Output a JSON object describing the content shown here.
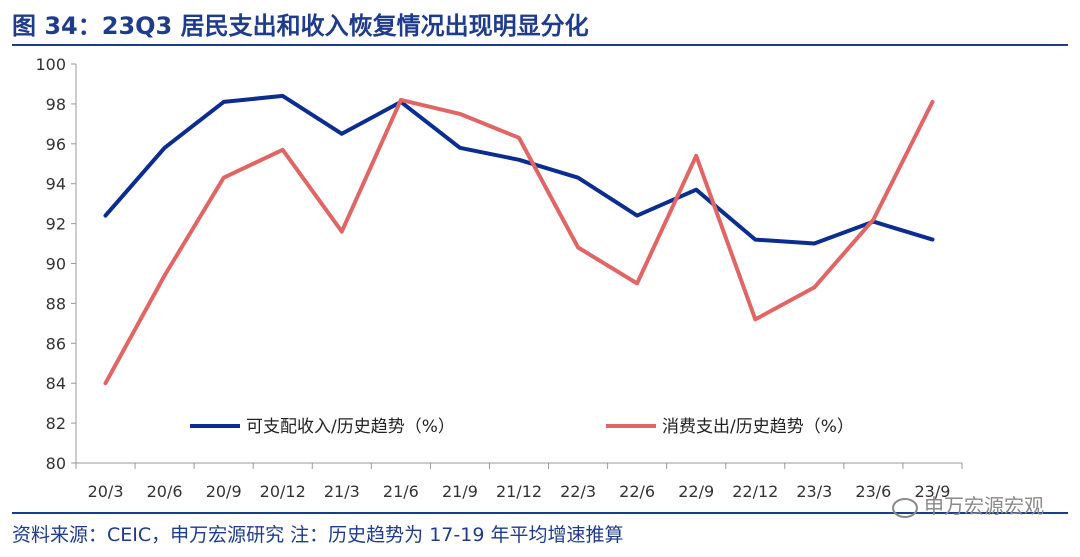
{
  "header": {
    "title": "图 34：23Q3 居民支出和收入恢复情况出现明显分化"
  },
  "footer": {
    "source": "资料来源：CEIC，申万宏源研究 注：历史趋势为 17-19 年平均增速推算",
    "watermark": "申万宏源宏观"
  },
  "chart_data": {
    "type": "line",
    "categories": [
      "20/3",
      "20/6",
      "20/9",
      "20/12",
      "21/3",
      "21/6",
      "21/9",
      "21/12",
      "22/3",
      "22/6",
      "22/9",
      "22/12",
      "23/3",
      "23/6",
      "23/9"
    ],
    "series": [
      {
        "name": "可支配收入/历史趋势（%）",
        "color": "#0b2d8f",
        "values": [
          92.4,
          95.8,
          98.1,
          98.4,
          96.5,
          98.1,
          95.8,
          95.2,
          94.3,
          92.4,
          93.7,
          91.2,
          91.0,
          92.1,
          91.2
        ]
      },
      {
        "name": "消费支出/历史趋势（%）",
        "color": "#e06666",
        "values": [
          84.0,
          89.4,
          94.3,
          95.7,
          91.6,
          98.2,
          97.5,
          96.3,
          90.8,
          89.0,
          95.4,
          87.2,
          88.8,
          92.2,
          98.1
        ]
      }
    ],
    "ylim": [
      80,
      100
    ],
    "yticks": [
      80,
      82,
      84,
      86,
      88,
      90,
      92,
      94,
      96,
      98,
      100
    ],
    "legend_position": "inside-bottom",
    "grid": false
  }
}
